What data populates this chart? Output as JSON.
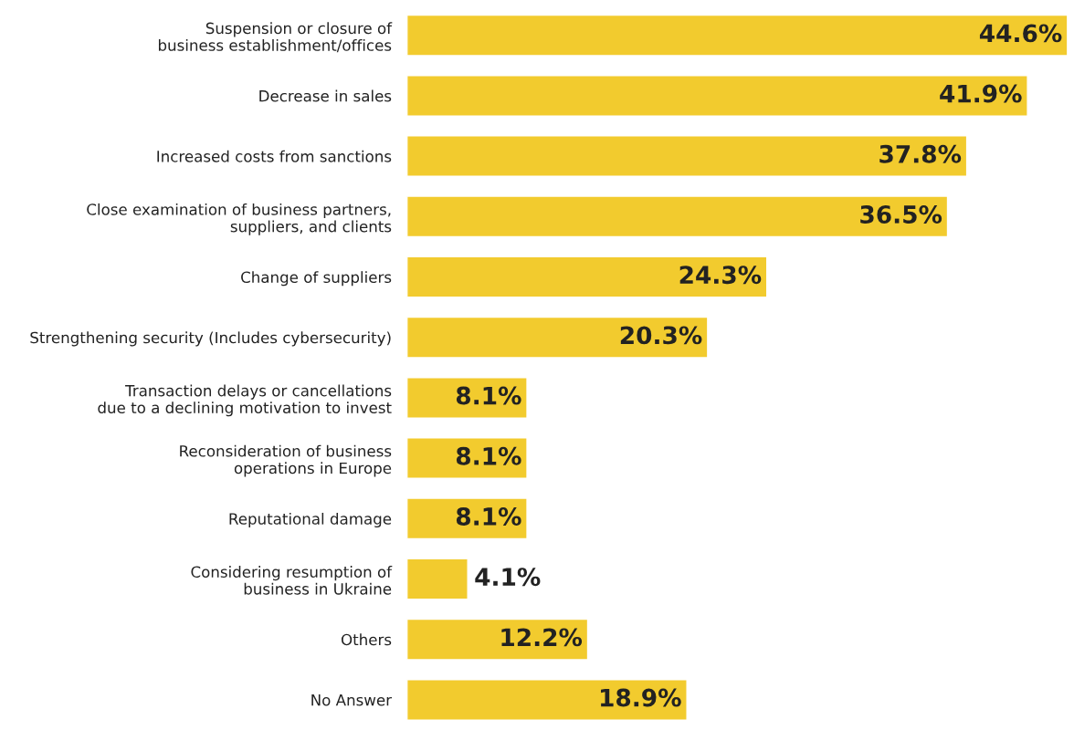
{
  "chart_data": {
    "type": "bar",
    "orientation": "horizontal",
    "categories": [
      "Suspension or closure of\nbusiness establishment/offices",
      "Decrease in sales",
      "Increased costs from sanctions",
      "Close examination of business partners,\nsuppliers, and clients",
      "Change of suppliers",
      "Strengthening security (Includes cybersecurity)",
      "Transaction delays or cancellations\ndue to a declining motivation to invest",
      "Reconsideration of business\noperations in Europe",
      "Reputational damage",
      "Considering resumption of\nbusiness in Ukraine",
      "Others",
      "No Answer"
    ],
    "values": [
      44.6,
      41.9,
      37.8,
      36.5,
      24.3,
      20.3,
      8.1,
      8.1,
      8.1,
      4.1,
      12.2,
      18.9
    ],
    "value_labels": [
      "44.6%",
      "41.9%",
      "37.8%",
      "36.5%",
      "24.3%",
      "20.3%",
      "8.1%",
      "8.1%",
      "8.1%",
      "4.1%",
      "12.2%",
      "18.9%"
    ],
    "color": "#f2cb2e",
    "grid": false,
    "legend": false
  }
}
